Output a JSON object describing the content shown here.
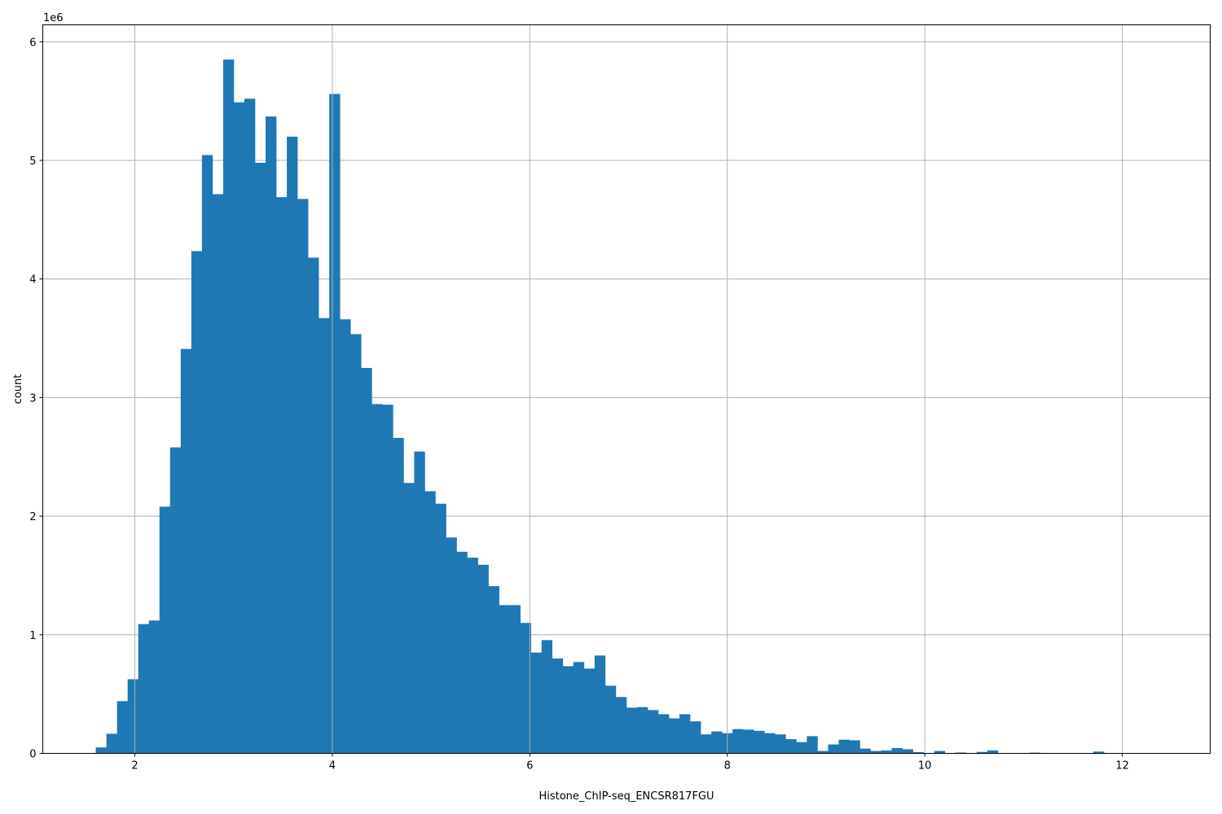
{
  "chart_data": {
    "type": "bar",
    "subtype": "histogram",
    "xlabel": "Histone_ChIP-seq_ENCSR817FGU",
    "ylabel": "count",
    "y_offset_label": "1e6",
    "bins": {
      "start": 1.605,
      "end": 12.352,
      "count": 100
    },
    "values_1e6": [
      0.05,
      0.165,
      0.44,
      0.625,
      1.09,
      1.12,
      2.08,
      2.58,
      3.41,
      4.235,
      5.045,
      4.715,
      5.85,
      5.49,
      5.52,
      4.98,
      5.37,
      4.69,
      5.2,
      4.675,
      4.18,
      3.67,
      5.56,
      3.66,
      3.535,
      3.25,
      2.945,
      2.94,
      2.66,
      2.28,
      2.545,
      2.21,
      2.105,
      1.82,
      1.7,
      1.65,
      1.59,
      1.41,
      1.25,
      1.25,
      1.1,
      0.85,
      0.955,
      0.8,
      0.735,
      0.77,
      0.715,
      0.825,
      0.57,
      0.475,
      0.385,
      0.39,
      0.365,
      0.33,
      0.295,
      0.33,
      0.27,
      0.16,
      0.185,
      0.17,
      0.205,
      0.2,
      0.19,
      0.17,
      0.16,
      0.12,
      0.095,
      0.145,
      0.02,
      0.075,
      0.115,
      0.11,
      0.04,
      0.02,
      0.025,
      0.045,
      0.035,
      0.01,
      0,
      0.02,
      0,
      0.007,
      0,
      0.012,
      0.025,
      0,
      0,
      0,
      0.006,
      0,
      0,
      0,
      0,
      0,
      0.015,
      0,
      0,
      0,
      0,
      0
    ],
    "xlim": [
      1.068,
      12.89
    ],
    "ylim": [
      0,
      6.143
    ],
    "xticks": [
      2,
      4,
      6,
      8,
      10,
      12
    ],
    "xtick_labels": [
      "2",
      "4",
      "6",
      "8",
      "10",
      "12"
    ],
    "yticks": [
      0,
      1,
      2,
      3,
      4,
      5,
      6
    ],
    "ytick_labels": [
      "0",
      "1",
      "2",
      "3",
      "4",
      "5",
      "6"
    ],
    "grid": true,
    "color": "#1f77b4",
    "grid_color": "#b0b0b0"
  }
}
